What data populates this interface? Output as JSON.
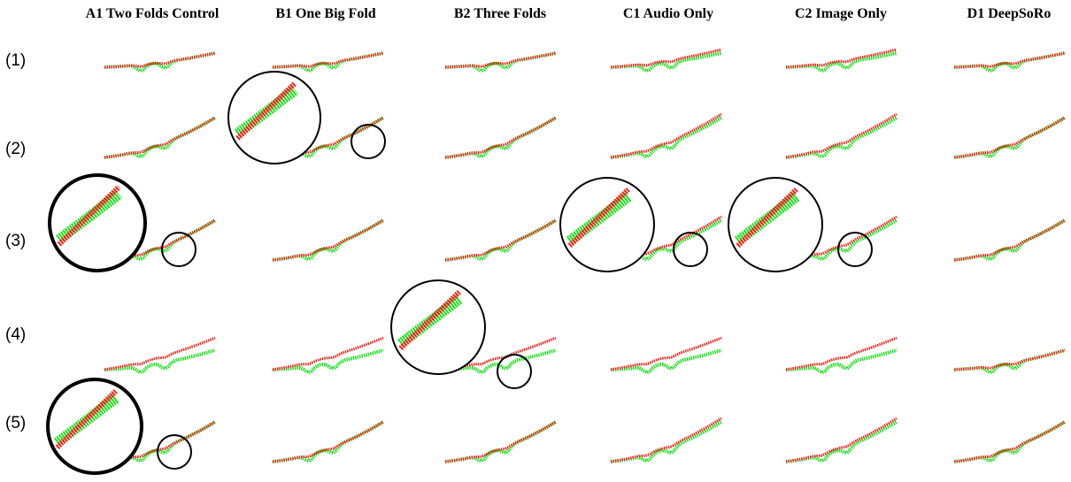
{
  "columns": [
    "A1 Two Folds Control",
    "B1 One Big Fold",
    "B2 Three Folds",
    "C1 Audio Only",
    "C2 Image Only",
    "D1 DeepSoRo"
  ],
  "rows": [
    "(1)",
    "(2)",
    "(3)",
    "(4)",
    "(5)"
  ]
}
